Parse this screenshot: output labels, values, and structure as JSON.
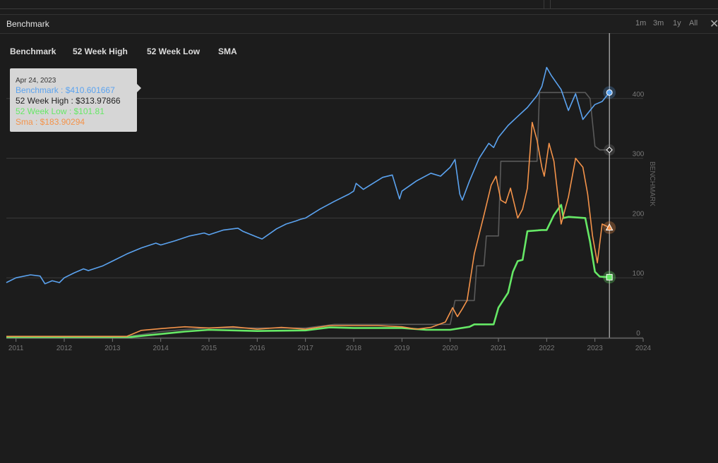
{
  "panel": {
    "title": "Benchmark",
    "ranges": [
      "1m",
      "3m",
      "1y",
      "All"
    ],
    "close_icon": "close-icon"
  },
  "legend": [
    "Benchmark",
    "52 Week High",
    "52 Week Low",
    "SMA"
  ],
  "tooltip": {
    "date": "Apr 24, 2023",
    "rows": [
      {
        "label": "Benchmark : $410.601667",
        "color": "#5ba3f0"
      },
      {
        "label": "52 Week High : $313.97866",
        "color": "#222222"
      },
      {
        "label": "52 Week Low : $101.81",
        "color": "#66e866"
      },
      {
        "label": "Sma : $183.90294",
        "color": "#f4934a"
      }
    ]
  },
  "chart_data": {
    "type": "line",
    "ylabel": "BENCHMARK",
    "ylim": [
      0,
      500
    ],
    "xlim": [
      2010.8,
      2024.0
    ],
    "x_ticks": [
      "2011",
      "2012",
      "2013",
      "2014",
      "2015",
      "2016",
      "2017",
      "2018",
      "2019",
      "2020",
      "2021",
      "2022",
      "2023",
      "2024"
    ],
    "y_ticks": [
      "0",
      "100",
      "200",
      "300",
      "400"
    ],
    "grid": true,
    "legend_position": "top-left",
    "series": [
      {
        "name": "Benchmark",
        "color": "#5ba3f0",
        "x": [
          2010.8,
          2011.0,
          2011.3,
          2011.5,
          2011.6,
          2011.75,
          2011.9,
          2012.0,
          2012.2,
          2012.4,
          2012.5,
          2012.8,
          2013.0,
          2013.3,
          2013.6,
          2013.9,
          2014.0,
          2014.3,
          2014.6,
          2014.9,
          2015.0,
          2015.3,
          2015.6,
          2015.7,
          2016.0,
          2016.1,
          2016.4,
          2016.6,
          2016.8,
          2016.9,
          2017.0,
          2017.3,
          2017.6,
          2017.9,
          2018.0,
          2018.05,
          2018.2,
          2018.4,
          2018.6,
          2018.8,
          2018.95,
          2019.0,
          2019.3,
          2019.6,
          2019.8,
          2020.0,
          2020.1,
          2020.2,
          2020.25,
          2020.4,
          2020.6,
          2020.8,
          2020.9,
          2021.0,
          2021.2,
          2021.4,
          2021.6,
          2021.8,
          2021.9,
          2022.0,
          2022.1,
          2022.3,
          2022.45,
          2022.6,
          2022.75,
          2022.9,
          2023.0,
          2023.15,
          2023.3
        ],
        "y": [
          92,
          100,
          105,
          103,
          90,
          95,
          92,
          100,
          108,
          115,
          112,
          120,
          128,
          140,
          150,
          158,
          155,
          162,
          170,
          175,
          172,
          180,
          183,
          178,
          168,
          165,
          182,
          190,
          195,
          198,
          200,
          215,
          228,
          240,
          245,
          258,
          248,
          258,
          268,
          272,
          232,
          245,
          262,
          275,
          270,
          285,
          298,
          240,
          230,
          262,
          300,
          325,
          318,
          335,
          355,
          370,
          385,
          405,
          420,
          452,
          438,
          415,
          380,
          408,
          365,
          380,
          390,
          395,
          410
        ]
      },
      {
        "name": "52 Week High",
        "color": "#5a5a5a",
        "x": [
          2010.8,
          2013.3,
          2013.6,
          2014.0,
          2014.6,
          2015.0,
          2017.0,
          2017.6,
          2019.6,
          2020.0,
          2020.1,
          2020.5,
          2020.55,
          2020.7,
          2020.75,
          2021.0,
          2021.05,
          2021.3,
          2021.4,
          2021.8,
          2021.85,
          2022.3,
          2022.4,
          2022.8,
          2022.9,
          2023.0,
          2023.1,
          2023.3
        ],
        "y": [
          2,
          2,
          5,
          10,
          14,
          16,
          16,
          22,
          22,
          22,
          62,
          62,
          120,
          120,
          170,
          170,
          295,
          295,
          295,
          295,
          410,
          410,
          410,
          410,
          400,
          320,
          314,
          314
        ]
      },
      {
        "name": "52 Week Low",
        "color": "#66e866",
        "x": [
          2010.8,
          2013.3,
          2013.5,
          2014.0,
          2014.5,
          2015.0,
          2016.0,
          2017.0,
          2017.5,
          2018.0,
          2019.0,
          2019.5,
          2020.0,
          2020.4,
          2020.5,
          2020.9,
          2021.0,
          2021.2,
          2021.3,
          2021.4,
          2021.5,
          2021.6,
          2021.9,
          2022.0,
          2022.15,
          2022.3,
          2022.35,
          2022.45,
          2022.8,
          2022.9,
          2023.0,
          2023.1,
          2023.3
        ],
        "y": [
          0,
          0,
          2,
          6,
          10,
          13,
          11,
          12,
          17,
          16,
          16,
          13,
          13,
          18,
          22,
          22,
          50,
          75,
          110,
          128,
          130,
          178,
          180,
          180,
          205,
          222,
          200,
          202,
          200,
          160,
          110,
          102,
          101
        ]
      },
      {
        "name": "SMA",
        "color": "#f4934a",
        "x": [
          2010.8,
          2013.3,
          2013.6,
          2014.0,
          2014.5,
          2015.0,
          2015.5,
          2016.0,
          2016.5,
          2017.0,
          2017.5,
          2018.0,
          2018.5,
          2019.0,
          2019.3,
          2019.6,
          2019.9,
          2020.05,
          2020.15,
          2020.25,
          2020.35,
          2020.5,
          2020.7,
          2020.85,
          2020.95,
          2021.05,
          2021.15,
          2021.25,
          2021.4,
          2021.5,
          2021.6,
          2021.7,
          2021.8,
          2021.9,
          2021.95,
          2022.05,
          2022.15,
          2022.3,
          2022.45,
          2022.6,
          2022.75,
          2022.85,
          2022.95,
          2023.05,
          2023.15,
          2023.3
        ],
        "y": [
          2,
          2,
          12,
          15,
          18,
          16,
          18,
          14,
          17,
          14,
          20,
          20,
          20,
          18,
          14,
          17,
          26,
          50,
          35,
          48,
          62,
          140,
          205,
          255,
          270,
          230,
          225,
          250,
          200,
          215,
          250,
          360,
          330,
          285,
          270,
          325,
          295,
          190,
          235,
          300,
          285,
          240,
          170,
          125,
          190,
          184
        ]
      }
    ]
  }
}
